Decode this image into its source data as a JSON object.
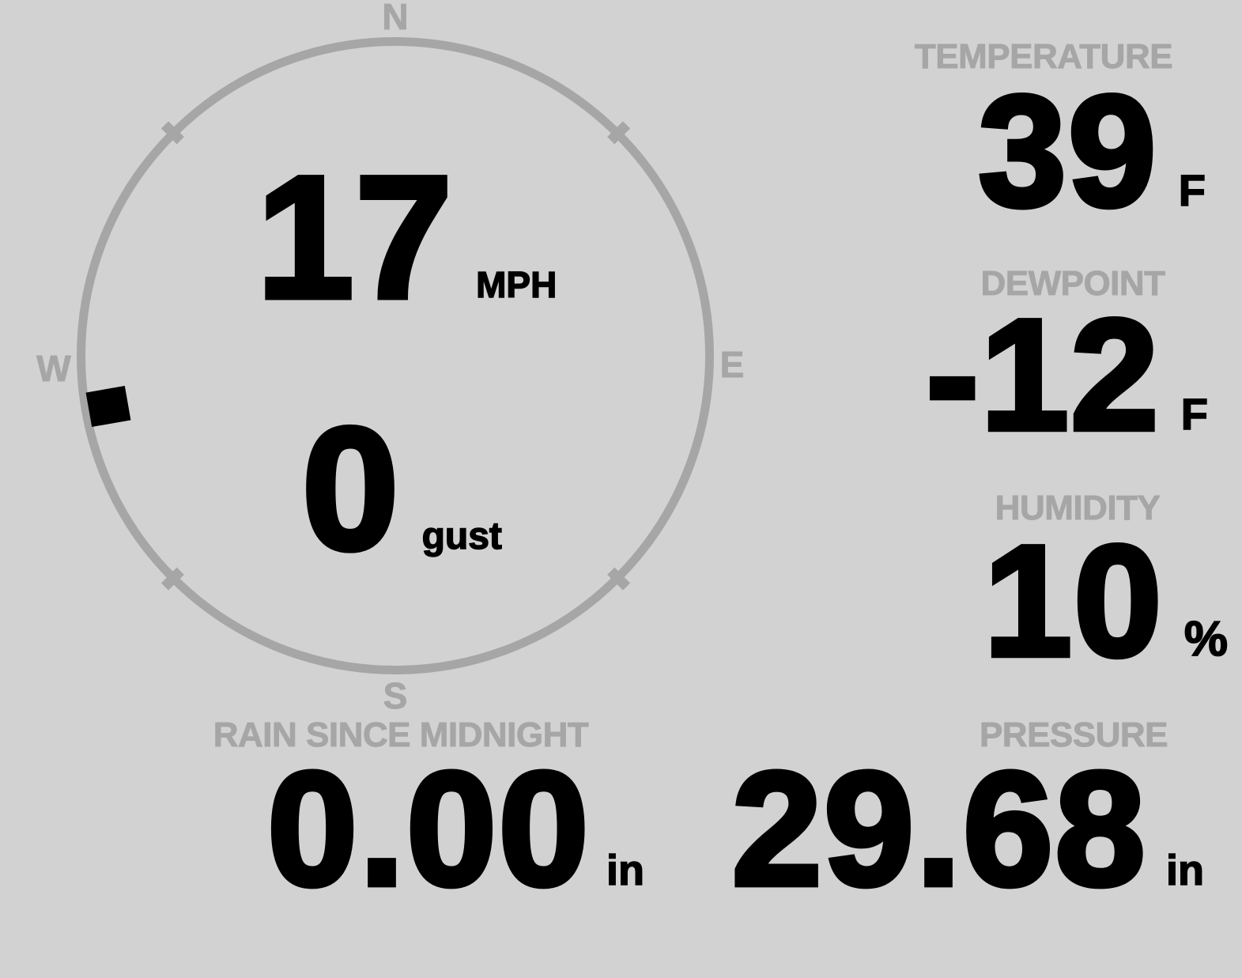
{
  "colors": {
    "background": "#d2d2d2",
    "label_gray": "#a6a6a6",
    "value_black": "#000000"
  },
  "wind": {
    "speed": "17",
    "speed_unit": "MPH",
    "gust": "0",
    "gust_unit": "gust",
    "direction_deg": 260,
    "compass": {
      "north": "N",
      "east": "E",
      "south": "S",
      "west": "W"
    }
  },
  "metrics": {
    "temperature": {
      "label": "TEMPERATURE",
      "value": "39",
      "unit": "F"
    },
    "dewpoint": {
      "label": "DEWPOINT",
      "value": "-12",
      "unit": "F"
    },
    "humidity": {
      "label": "HUMIDITY",
      "value": "10",
      "unit": "%"
    },
    "rain": {
      "label": "RAIN SINCE MIDNIGHT",
      "value": "0.00",
      "unit": "in"
    },
    "pressure": {
      "label": "PRESSURE",
      "value": "29.68",
      "unit": "in"
    }
  }
}
